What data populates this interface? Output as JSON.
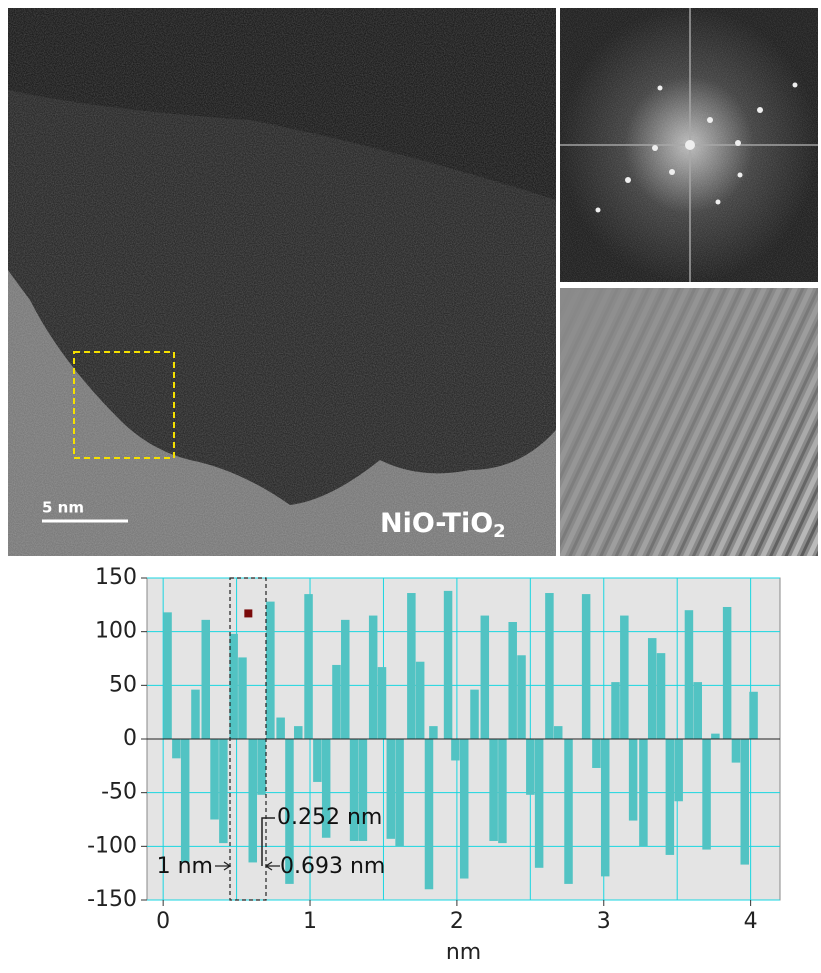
{
  "figure": {
    "scale_bar": "5 nm",
    "sample_label": "NiO-TiO",
    "sample_label_subscript": "2"
  },
  "chart_data": {
    "type": "bar",
    "xlabel": "nm",
    "color": "#52c3c3",
    "x": [
      0.03,
      0.09,
      0.15,
      0.22,
      0.29,
      0.35,
      0.41,
      0.48,
      0.54,
      0.61,
      0.67,
      0.73,
      0.8,
      0.86,
      0.92,
      0.99,
      1.05,
      1.11,
      1.18,
      1.24,
      1.3,
      1.36,
      1.43,
      1.49,
      1.55,
      1.61,
      1.69,
      1.75,
      1.81,
      1.84,
      1.94,
      1.99,
      2.05,
      2.12,
      2.19,
      2.25,
      2.31,
      2.38,
      2.44,
      2.5,
      2.56,
      2.63,
      2.69,
      2.76,
      2.88,
      2.95,
      3.01,
      3.08,
      3.14,
      3.2,
      3.27,
      3.33,
      3.39,
      3.45,
      3.51,
      3.58,
      3.64,
      3.7,
      3.76,
      3.84,
      3.9,
      3.96,
      4.02
    ],
    "values": [
      118,
      -18,
      -115,
      46,
      111,
      -75,
      -97,
      98,
      76,
      -115,
      -52,
      128,
      20,
      -135,
      12,
      135,
      -40,
      -92,
      69,
      111,
      -95,
      -95,
      115,
      67,
      -93,
      -100,
      136,
      72,
      -140,
      12,
      138,
      -20,
      -130,
      46,
      115,
      -95,
      -97,
      109,
      78,
      -52,
      -120,
      136,
      12,
      -135,
      135,
      -27,
      -128,
      53,
      115,
      -76,
      -100,
      94,
      80,
      -108,
      -58,
      120,
      53,
      -103,
      5,
      123,
      -22,
      -117,
      44
    ],
    "marker": {
      "x": 0.58,
      "y": 117,
      "color": "#7a0a0a"
    },
    "xlim": [
      -0.11,
      4.2
    ],
    "ylim": [
      -150,
      150
    ],
    "xticks": [
      0,
      1,
      2,
      3,
      4
    ],
    "yticks": [
      150,
      100,
      50,
      0,
      -50,
      -100,
      -150
    ],
    "xgrid": [
      0,
      0.5,
      1,
      1.5,
      2,
      2.5,
      3,
      3.5,
      4
    ],
    "grid": true,
    "grid_color": "#19d6e0",
    "annotations": [
      "0.252 nm",
      "1 nm",
      "0.693 nm"
    ]
  }
}
